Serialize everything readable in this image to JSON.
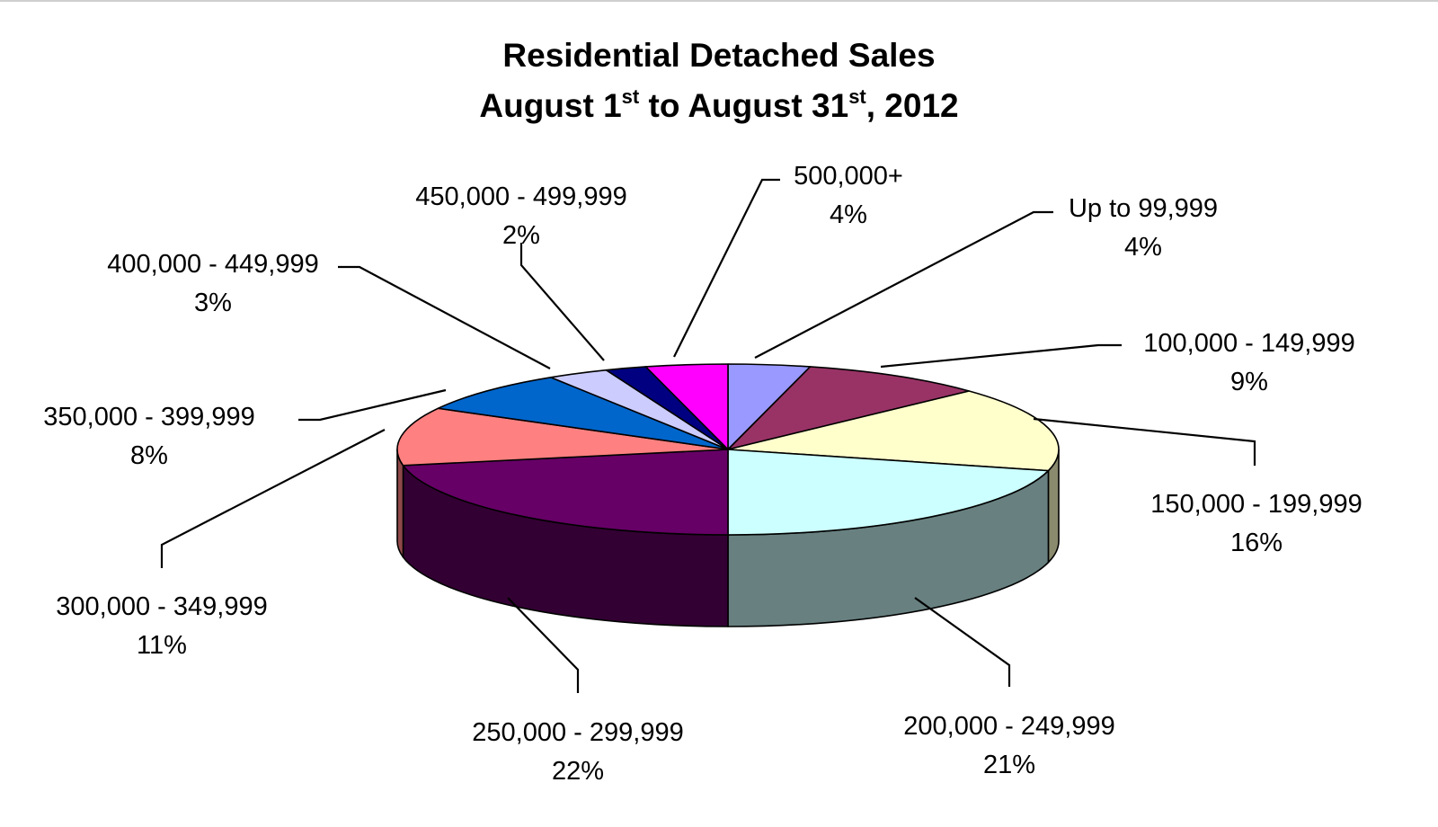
{
  "chart_data": {
    "type": "pie",
    "style": "3d",
    "title": {
      "line1": "Residential Detached Sales",
      "line2_parts": {
        "month_a": "August 1",
        "sup_a": "st",
        "to_text": " to August 31",
        "sup_b": "st",
        "year_text": ", 2012"
      }
    },
    "slices": [
      {
        "label": "Up to 99,999",
        "pct_label": "4%",
        "value": 4,
        "color": "#9999ff",
        "side_color": "#5a5a99"
      },
      {
        "label": "100,000 - 149,999",
        "pct_label": "9%",
        "value": 9,
        "color": "#993366",
        "side_color": "#5c1f3d"
      },
      {
        "label": "150,000 - 199,999",
        "pct_label": "16%",
        "value": 16,
        "color": "#ffffcc",
        "side_color": "#8a8a6e"
      },
      {
        "label": "200,000 - 249,999",
        "pct_label": "21%",
        "value": 21,
        "color": "#ccffff",
        "side_color": "#688080"
      },
      {
        "label": "250,000 - 299,999",
        "pct_label": "22%",
        "value": 22,
        "color": "#660066",
        "side_color": "#330033"
      },
      {
        "label": "300,000 - 349,999",
        "pct_label": "11%",
        "value": 11,
        "color": "#ff8080",
        "side_color": "#8f4848"
      },
      {
        "label": "350,000 - 399,999",
        "pct_label": "8%",
        "value": 8,
        "color": "#0066cc",
        "side_color": "#003d7a"
      },
      {
        "label": "400,000 - 449,999",
        "pct_label": "3%",
        "value": 3,
        "color": "#ccccff",
        "side_color": "#7a7a99"
      },
      {
        "label": "450,000 - 499,999",
        "pct_label": "2%",
        "value": 2,
        "color": "#000080",
        "side_color": "#00004d"
      },
      {
        "label": "500,000+",
        "pct_label": "4%",
        "value": 4,
        "color": "#ff00ff",
        "side_color": "#990099"
      }
    ],
    "legend": "none",
    "data_labels": "category and percent, outside with leader lines"
  }
}
